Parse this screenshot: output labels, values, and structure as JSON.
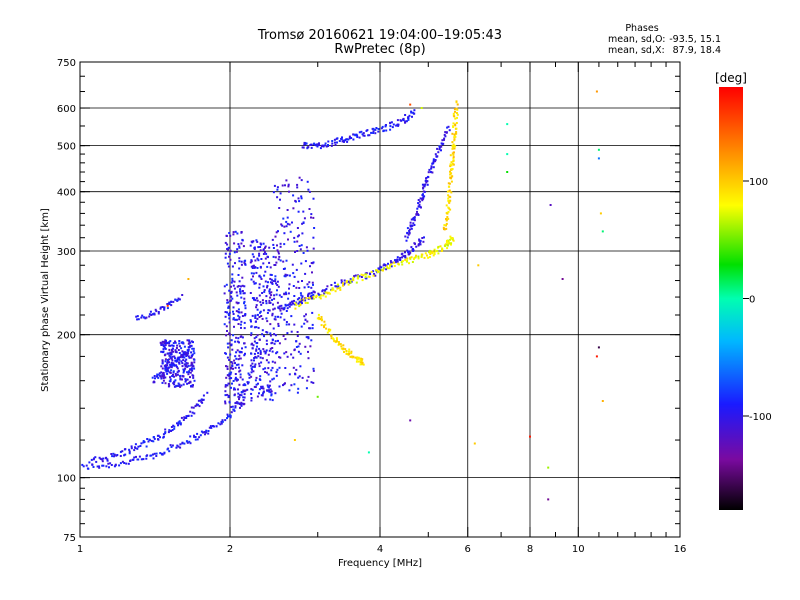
{
  "chart_data": {
    "type": "scatter",
    "title": "Tromsø 20160621 19:04:00–19:05:43",
    "subtitle": "RwPretec (8p)",
    "xlabel": "Frequency [MHz]",
    "ylabel": "Stationary phase Virtual Height [km]",
    "x_scale": "log",
    "y_scale": "log",
    "xlim": [
      1,
      16
    ],
    "ylim": [
      75,
      750
    ],
    "x_ticks": [
      1,
      2,
      4,
      6,
      8,
      10,
      16
    ],
    "y_ticks": [
      75,
      100,
      200,
      300,
      400,
      500,
      600,
      750
    ],
    "grid": true,
    "stats": {
      "heading": "Phases",
      "o_label": "mean, sd,O:",
      "o_values": "-93.5, 15.1",
      "x_label": "mean, sd,X:",
      "x_values": "87.9, 18.4"
    },
    "colorbar": {
      "label": "[deg]",
      "range": [
        -180,
        180
      ],
      "ticks": [
        -100,
        0,
        100
      ],
      "colormap": "rainbow (black-purple-blue-cyan-green-yellow-red)"
    },
    "traces": [
      {
        "comment_free": true,
        "freq": [
          1.0,
          1.2,
          1.4,
          1.6,
          1.8,
          2.0,
          2.15,
          2.3
        ],
        "height": [
          105,
          107,
          111,
          118,
          125,
          135,
          155,
          190
        ],
        "phase": -95
      },
      {
        "freq": [
          1.05,
          1.2,
          1.35,
          1.5,
          1.65,
          1.8
        ],
        "height": [
          108,
          112,
          118,
          125,
          135,
          150
        ],
        "phase": -95
      },
      {
        "freq": [
          1.4,
          1.5,
          1.6,
          1.65
        ],
        "height": [
          160,
          170,
          180,
          185
        ],
        "phase": -95
      },
      {
        "freq": [
          1.3,
          1.45,
          1.6
        ],
        "height": [
          215,
          225,
          240
        ],
        "phase": -95
      },
      {
        "freq": [
          2.5,
          2.7,
          3.0,
          3.4,
          3.9,
          4.3,
          4.6,
          4.9
        ],
        "height": [
          225,
          235,
          245,
          258,
          270,
          285,
          300,
          320
        ],
        "phase": -100
      },
      {
        "freq": [
          4.5,
          4.7,
          4.85,
          5.0,
          5.2,
          5.5
        ],
        "height": [
          320,
          350,
          390,
          430,
          480,
          550
        ],
        "phase": -100
      },
      {
        "freq": [
          2.8,
          3.0,
          3.3,
          3.6,
          4.0,
          4.4,
          4.7
        ],
        "height": [
          500,
          500,
          510,
          525,
          540,
          560,
          590
        ],
        "phase": -95
      },
      {
        "freq": [
          2.7,
          3.0,
          3.4,
          3.9,
          4.5,
          5.0,
          5.4,
          5.6
        ],
        "height": [
          230,
          240,
          255,
          270,
          285,
          295,
          305,
          320
        ],
        "phase": 80
      },
      {
        "freq": [
          5.4,
          5.5,
          5.55,
          5.6,
          5.65,
          5.7
        ],
        "height": [
          330,
          380,
          430,
          480,
          540,
          620
        ],
        "phase": 95
      },
      {
        "freq": [
          3.0,
          3.2,
          3.4,
          3.6,
          3.7
        ],
        "height": [
          220,
          200,
          185,
          178,
          175
        ],
        "phase": 90
      }
    ],
    "bands": [
      {
        "freq_range": [
          1.95,
          2.15
        ],
        "height_range": [
          140,
          330
        ],
        "phase": -100
      },
      {
        "freq_range": [
          2.2,
          2.45
        ],
        "height_range": [
          145,
          320
        ],
        "phase": -100
      },
      {
        "freq_range": [
          2.45,
          2.95
        ],
        "height_range": [
          150,
          430
        ],
        "phase": -100
      },
      {
        "freq_range": [
          1.45,
          1.7
        ],
        "height_range": [
          155,
          195
        ],
        "phase": -100
      }
    ],
    "isolated": [
      {
        "freq": 6.3,
        "height": 280,
        "phase": 100
      },
      {
        "freq": 7.2,
        "height": 555,
        "phase": 0
      },
      {
        "freq": 7.2,
        "height": 480,
        "phase": 0
      },
      {
        "freq": 7.2,
        "height": 440,
        "phase": 30
      },
      {
        "freq": 8.8,
        "height": 375,
        "phase": -120
      },
      {
        "freq": 9.3,
        "height": 262,
        "phase": -140
      },
      {
        "freq": 10.9,
        "height": 650,
        "phase": 120
      },
      {
        "freq": 11.0,
        "height": 490,
        "phase": 10
      },
      {
        "freq": 11.0,
        "height": 470,
        "phase": -60
      },
      {
        "freq": 11.2,
        "height": 330,
        "phase": 10
      },
      {
        "freq": 11.1,
        "height": 360,
        "phase": 100
      },
      {
        "freq": 11.0,
        "height": 188,
        "phase": -160
      },
      {
        "freq": 10.9,
        "height": 180,
        "phase": 170
      },
      {
        "freq": 11.2,
        "height": 145,
        "phase": 110
      },
      {
        "freq": 8.0,
        "height": 122,
        "phase": 170
      },
      {
        "freq": 8.7,
        "height": 105,
        "phase": 60
      },
      {
        "freq": 8.7,
        "height": 90,
        "phase": -140
      },
      {
        "freq": 6.2,
        "height": 118,
        "phase": 100
      },
      {
        "freq": 4.6,
        "height": 132,
        "phase": -130
      },
      {
        "freq": 3.8,
        "height": 113,
        "phase": 0
      },
      {
        "freq": 2.7,
        "height": 120,
        "phase": 100
      },
      {
        "freq": 3.0,
        "height": 148,
        "phase": 50
      },
      {
        "freq": 1.65,
        "height": 262,
        "phase": 110
      },
      {
        "freq": 1.5,
        "height": 230,
        "phase": 160
      },
      {
        "freq": 4.85,
        "height": 600,
        "phase": 70
      },
      {
        "freq": 4.6,
        "height": 610,
        "phase": 150
      }
    ]
  }
}
